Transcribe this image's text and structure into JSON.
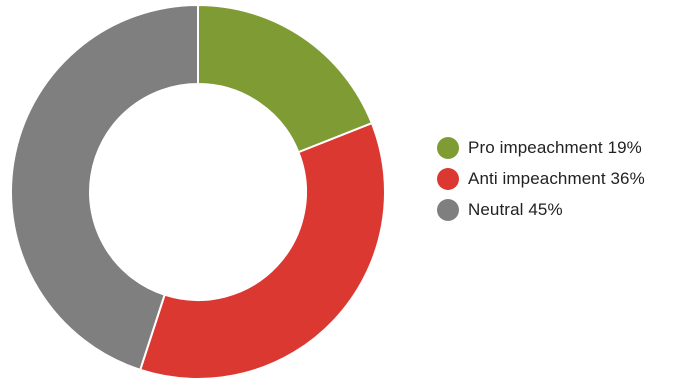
{
  "chart_data": {
    "type": "pie",
    "variant": "donut",
    "start": "top, clockwise",
    "legend_position": "right",
    "slices": [
      {
        "label": "Pro impeachment",
        "value": 19,
        "value_text": "19%",
        "color": "#7f9c34"
      },
      {
        "label": "Anti impeachment",
        "value": 36,
        "value_text": "36%",
        "color": "#db3832"
      },
      {
        "label": "Neutral",
        "value": 45,
        "value_text": "45%",
        "color": "#7f7f7f"
      }
    ]
  }
}
